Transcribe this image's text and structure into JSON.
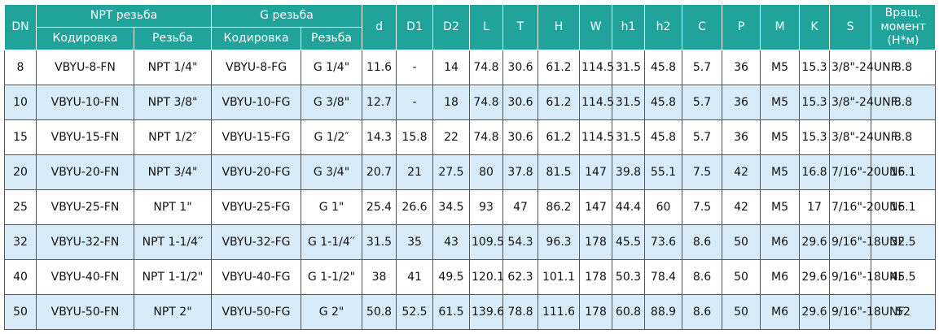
{
  "header": {
    "dn": "DN",
    "groups": [
      "NPT резьба",
      "G резьба"
    ],
    "sub": [
      "Кодировка",
      "Резьба",
      "Кодировка",
      "Резьба"
    ],
    "dims": [
      "d",
      "D1",
      "D2",
      "L",
      "T",
      "H",
      "W",
      "h1",
      "h2",
      "C",
      "P",
      "M",
      "K",
      "S"
    ],
    "torque": [
      "Вращ.",
      "момент",
      "(Н*м)"
    ]
  },
  "table": {
    "rows": [
      [
        "8",
        "VBYU-8-FN",
        "NPT 1/4\"",
        "VBYU-8-FG",
        "G 1/4\"",
        "11.6",
        "-",
        "14",
        "74.8",
        "30.6",
        "61.2",
        "114.5",
        "31.5",
        "45.8",
        "5.7",
        "36",
        "M5",
        "15.3",
        "3/8\"-24UNF",
        "8.8"
      ],
      [
        "10",
        "VBYU-10-FN",
        "NPT 3/8\"",
        "VBYU-10-FG",
        "G 3/8\"",
        "12.7",
        "-",
        "18",
        "74.8",
        "30.6",
        "61.2",
        "114.5",
        "31.5",
        "45.8",
        "5.7",
        "36",
        "M5",
        "15.3",
        "3/8\"-24UNF",
        "8.8"
      ],
      [
        "15",
        "VBYU-15-FN",
        "NPT 1/2″",
        "VBYU-15-FG",
        "G 1/2″",
        "14.3",
        "15.8",
        "22",
        "74.8",
        "30.6",
        "61.2",
        "114.5",
        "31.5",
        "45.8",
        "5.7",
        "36",
        "M5",
        "15.3",
        "3/8\"-24UNF",
        "8.8"
      ],
      [
        "20",
        "VBYU-20-FN",
        "NPT 3/4\"",
        "VBYU-20-FG",
        "G 3/4\"",
        "20.7",
        "21",
        "27.5",
        "80",
        "37.8",
        "81.5",
        "147",
        "39.8",
        "55.1",
        "7.5",
        "42",
        "M5",
        "16.8",
        "7/16\"-20UNF",
        "16.1"
      ],
      [
        "25",
        "VBYU-25-FN",
        "NPT 1\"",
        "VBYU-25-FG",
        "G 1\"",
        "25.4",
        "26.6",
        "34.5",
        "93",
        "47",
        "86.2",
        "147",
        "44.4",
        "60",
        "7.5",
        "42",
        "M5",
        "17",
        "7/16\"-20UNF",
        "16.1"
      ],
      [
        "32",
        "VBYU-32-FN",
        "NPT 1-1/4′′",
        "VBYU-32-FG",
        "G 1-1/4′′",
        "31.5",
        "35",
        "43",
        "109.5",
        "54.3",
        "96.3",
        "178",
        "45.5",
        "73.6",
        "8.6",
        "50",
        "M6",
        "29.6",
        "9/16\"-18UNF",
        "32.5"
      ],
      [
        "40",
        "VBYU-40-FN",
        "NPT 1-1/2\"",
        "VBYU-40-FG",
        "G 1-1/2\"",
        "38",
        "41",
        "49.5",
        "120.1",
        "62.3",
        "101.1",
        "178",
        "50.3",
        "78.4",
        "8.6",
        "50",
        "M6",
        "29.6",
        "9/16\"-18UNF",
        "45.5"
      ],
      [
        "50",
        "VBYU-50-FN",
        "NPT 2\"",
        "VBYU-50-FG",
        "G 2\"",
        "50.8",
        "52.5",
        "61.5",
        "139.6",
        "78.8",
        "111.6",
        "178",
        "60.8",
        "88.9",
        "8.6",
        "50",
        "M6",
        "29.6",
        "9/16\"-18UNF",
        "52"
      ]
    ]
  }
}
